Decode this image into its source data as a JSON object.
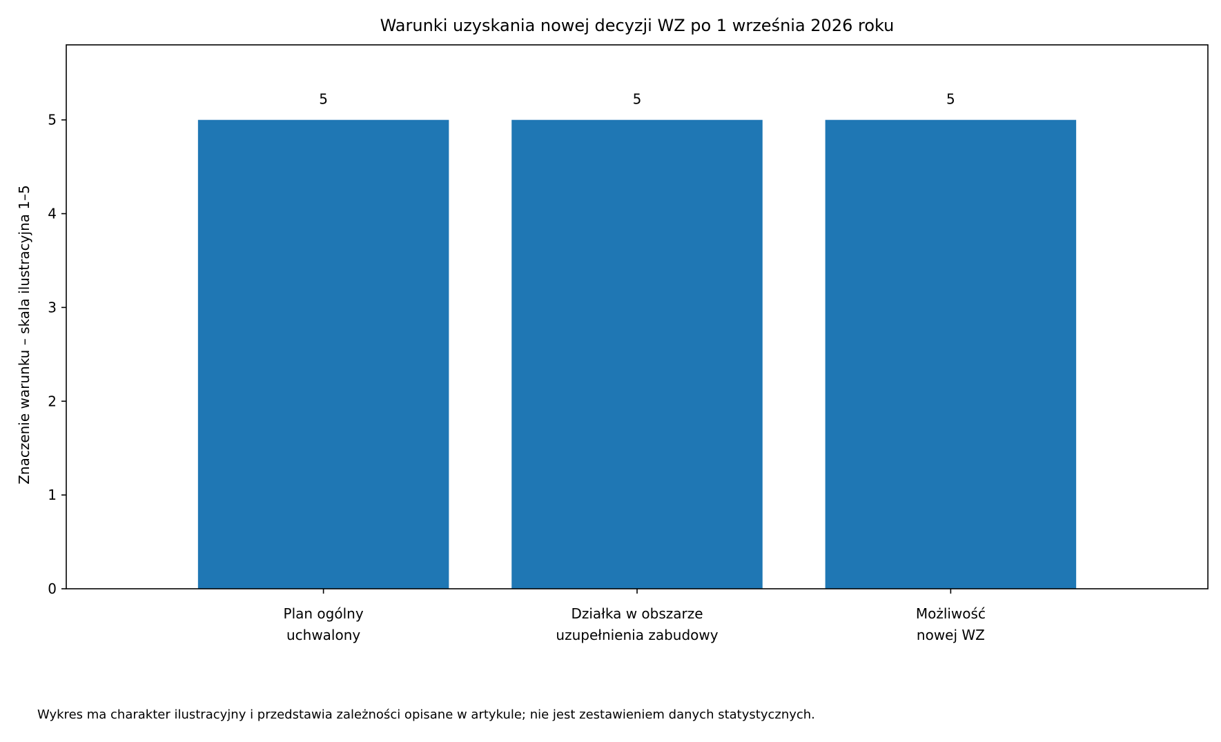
{
  "chart_data": {
    "type": "bar",
    "title": "Warunki uzyskania nowej decyzji WZ po 1 września 2026 roku",
    "xlabel": "",
    "ylabel": "Znaczenie warunku – skala ilustracyjna 1–5",
    "categories": [
      [
        "Plan ogólny",
        "uchwalony"
      ],
      [
        "Działka w obszarze",
        "uzupełnienia zabudowy"
      ],
      [
        "Możliwość",
        "nowej WZ"
      ]
    ],
    "values": [
      5,
      5,
      5
    ],
    "data_labels": [
      "5",
      "5",
      "5"
    ],
    "ylim": [
      0,
      5.8
    ],
    "yticks": [
      0,
      1,
      2,
      3,
      4,
      5
    ],
    "grid": false,
    "legend": "none",
    "bar_color": "#1f77b4"
  },
  "footnote": "Wykres ma charakter ilustracyjny i przedstawia zależności opisane w artykule; nie jest zestawieniem danych statystycznych."
}
